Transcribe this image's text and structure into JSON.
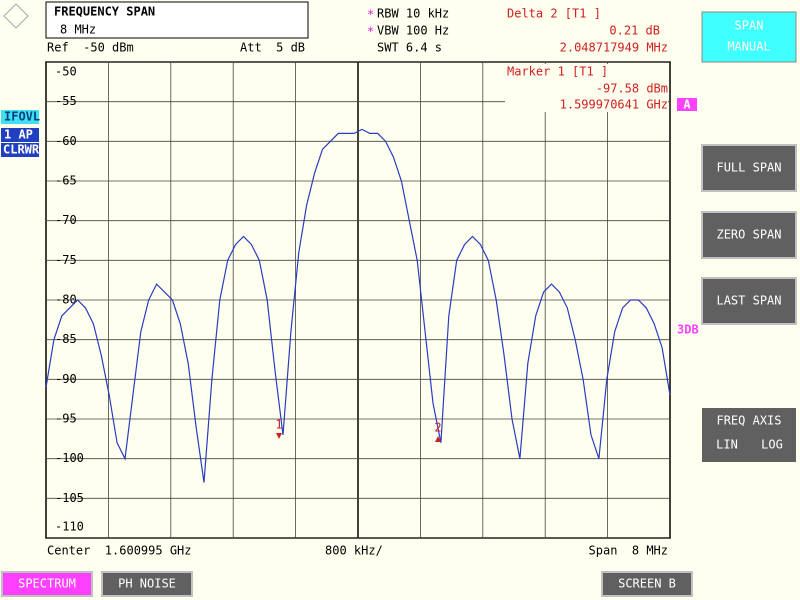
{
  "header": {
    "title": "FREQUENCY SPAN",
    "value": "8 MHz",
    "ref": "Ref  -50 dBm",
    "att": "Att  5 dB"
  },
  "settings": {
    "flag": "*",
    "rbw": "RBW 10 kHz",
    "vbw": "VBW 100 Hz",
    "swt": "SWT 6.4 s"
  },
  "delta": {
    "title": "Delta 2 [T1 ]",
    "level": "0.21 dB",
    "freq": "2.048717949 MHz"
  },
  "marker": {
    "title": "Marker 1 [T1 ]",
    "level": "-97.58 dBm",
    "freq": "1.599970641 GHz"
  },
  "badges": [
    "IFOVL",
    "1 AP",
    "CLRWR"
  ],
  "trace_label": "A",
  "side_label": "3DB",
  "markers": [
    {
      "label": "1"
    },
    {
      "label": "2"
    }
  ],
  "footer": {
    "center": "Center  1.600995 GHz",
    "div": "800 kHz/",
    "span": "Span  8 MHz"
  },
  "softkeys": {
    "span_manual": [
      "SPAN",
      "MANUAL"
    ],
    "full": "FULL SPAN",
    "zero": "ZERO SPAN",
    "last": "LAST SPAN",
    "axis": "FREQ AXIS",
    "lin": "LIN",
    "log": "LOG"
  },
  "tabs": {
    "spectrum": "SPECTRUM",
    "noise": "PH NOISE",
    "screen": "SCREEN B"
  },
  "chart_data": {
    "type": "line",
    "color": "#2a3cc0",
    "ylim": [
      -110,
      -50
    ],
    "yticks": [
      -50,
      -55,
      -60,
      -65,
      -70,
      -75,
      -80,
      -85,
      -90,
      -95,
      -100,
      -105,
      -110
    ],
    "grid": true,
    "values": [
      -91,
      -85,
      -82,
      -81,
      -80,
      -81,
      -83,
      -87,
      -92,
      -98,
      -100,
      -92,
      -84,
      -80,
      -78,
      -79,
      -80,
      -83,
      -88,
      -96,
      -103,
      -90,
      -80,
      -75,
      -73,
      -72,
      -73,
      -75,
      -80,
      -89,
      -97,
      -84,
      -74,
      -68,
      -64,
      -61,
      -60,
      -59,
      -59,
      -59,
      -58.5,
      -59,
      -59,
      -60,
      -62,
      -65,
      -70,
      -75,
      -84,
      -93,
      -98,
      -82,
      -75,
      -73,
      -72,
      -73,
      -75,
      -80,
      -87,
      -95,
      -100,
      -88,
      -82,
      -79,
      -78,
      -79,
      -81,
      -85,
      -90,
      -97,
      -100,
      -90,
      -84,
      -81,
      -80,
      -80,
      -81,
      -83,
      -86,
      -92
    ]
  }
}
